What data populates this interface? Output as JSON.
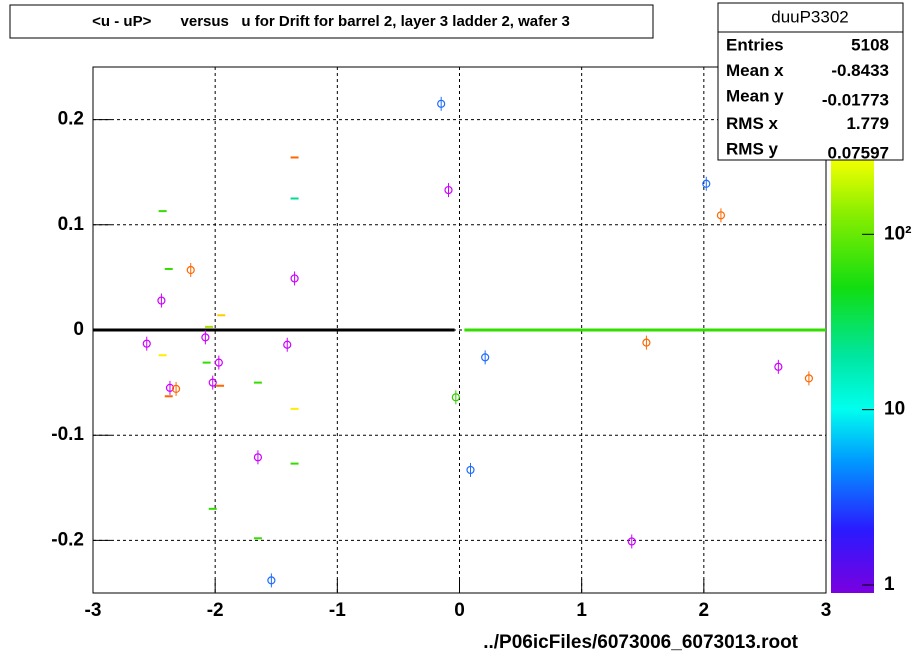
{
  "chart_data": {
    "type": "scatter",
    "title": "<u - uP>       versus   u for Drift for barrel 2, layer 3 ladder 2, wafer 3",
    "xlabel": "../P06icFiles/6073006_6073013.root",
    "xlim": [
      -3,
      3
    ],
    "ylim": [
      -0.25,
      0.25
    ],
    "xticks": [
      -3,
      -2,
      -1,
      0,
      1,
      2,
      3
    ],
    "yticks": [
      -0.2,
      -0.1,
      0,
      0.1,
      0.2
    ],
    "grid": true,
    "zlim": [
      0.9,
      900
    ],
    "zlog": true,
    "zticks": [
      1,
      10,
      {
        "value": 100,
        "label": "10²"
      }
    ],
    "stats": {
      "name": "duuP3302",
      "labels": [
        "Entries",
        "Mean x",
        "Mean y",
        "RMS x",
        "RMS y"
      ],
      "values": [
        5108,
        -0.8433,
        -0.01773,
        1.779,
        0.07597
      ]
    },
    "circles": {
      "x": [
        -0.15,
        -0.09,
        2.02,
        2.14,
        -2.2,
        -1.35,
        -2.44,
        -2.56,
        -2.08,
        -1.41,
        -1.97,
        -2.02,
        -2.37,
        -2.32,
        0.21,
        -0.03,
        1.53,
        2.61,
        2.86,
        -1.65,
        0.09,
        1.41,
        -1.54
      ],
      "y": [
        0.215,
        0.133,
        0.139,
        0.109,
        0.057,
        0.049,
        0.028,
        -0.013,
        -0.007,
        -0.014,
        -0.031,
        -0.05,
        -0.055,
        -0.056,
        -0.026,
        -0.064,
        -0.012,
        -0.035,
        -0.046,
        -0.121,
        -0.133,
        -0.201,
        -0.238
      ],
      "colors": [
        "#1e6cff",
        "#cc00ff",
        "#1e6cff",
        "#ff6600",
        "#ff6600",
        "#cc00ff",
        "#cc00ff",
        "#cc00ff",
        "#cc00ff",
        "#cc00ff",
        "#cc00ff",
        "#cc00ff",
        "#cc00ff",
        "#ff6600",
        "#1e6cff",
        "#33cc00",
        "#ff6600",
        "#cc00ff",
        "#ff6600",
        "#cc00ff",
        "#1e6cff",
        "#cc00ff",
        "#1e6cff"
      ]
    },
    "dashes": {
      "x": [
        -1.35,
        -1.35,
        -2.43,
        -2.38,
        -2.05,
        -1.95,
        -2.43,
        -2.07,
        -1.96,
        -1.65,
        -2.38,
        -1.35,
        -1.35,
        -2.02,
        -1.65
      ],
      "y": [
        0.164,
        0.125,
        0.113,
        0.058,
        0.003,
        0.014,
        -0.024,
        -0.031,
        -0.053,
        -0.05,
        -0.063,
        -0.075,
        -0.127,
        -0.17,
        -0.198
      ],
      "colors": [
        "#ff6600",
        "#00dd99",
        "#33dd00",
        "#33dd00",
        "#aadd00",
        "#ffcc00",
        "#ffee00",
        "#33dd00",
        "#ff6600",
        "#33dd00",
        "#ff6600",
        "#ffee00",
        "#33dd00",
        "#33dd00",
        "#33dd00"
      ]
    },
    "bands": [
      {
        "x": [
          -3,
          -0.04
        ],
        "y": 0,
        "color": "#000000"
      },
      {
        "x": [
          0.04,
          3
        ],
        "y": 0,
        "color": "#33dd00"
      }
    ]
  }
}
